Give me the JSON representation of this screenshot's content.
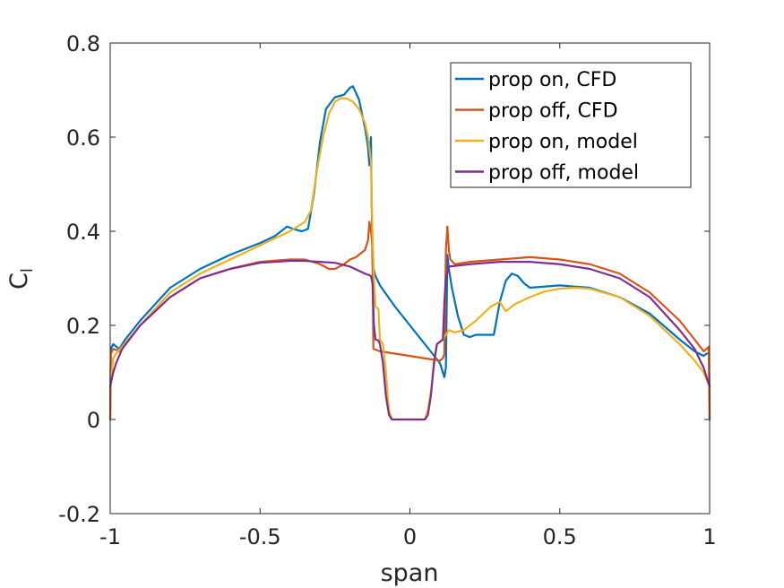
{
  "chart_data": {
    "type": "line",
    "xlabel": "span",
    "ylabel": "C",
    "ylabel_sub": "l",
    "xlim": [
      -1,
      1
    ],
    "ylim": [
      -0.2,
      0.8
    ],
    "xticks": [
      -1,
      -0.5,
      0,
      0.5,
      1
    ],
    "xtick_labels": [
      "-1",
      "-0.5",
      "0",
      "0.5",
      "1"
    ],
    "yticks": [
      -0.2,
      0,
      0.2,
      0.4,
      0.6,
      0.8
    ],
    "ytick_labels": [
      "-0.2",
      "0",
      "0.2",
      "0.4",
      "0.6",
      "0.8"
    ],
    "grid": false,
    "legend": {
      "position": "top-right"
    },
    "series": [
      {
        "name": "prop on, CFD",
        "color": "#0072BD",
        "points": [
          [
            -1,
            0.0
          ],
          [
            -0.998,
            0.15
          ],
          [
            -0.99,
            0.16
          ],
          [
            -0.98,
            0.155
          ],
          [
            -0.97,
            0.15
          ],
          [
            -0.95,
            0.17
          ],
          [
            -0.9,
            0.21
          ],
          [
            -0.8,
            0.28
          ],
          [
            -0.7,
            0.32
          ],
          [
            -0.6,
            0.35
          ],
          [
            -0.5,
            0.375
          ],
          [
            -0.45,
            0.39
          ],
          [
            -0.41,
            0.41
          ],
          [
            -0.39,
            0.405
          ],
          [
            -0.36,
            0.4
          ],
          [
            -0.34,
            0.405
          ],
          [
            -0.32,
            0.48
          ],
          [
            -0.3,
            0.59
          ],
          [
            -0.28,
            0.66
          ],
          [
            -0.25,
            0.685
          ],
          [
            -0.22,
            0.69
          ],
          [
            -0.2,
            0.705
          ],
          [
            -0.19,
            0.708
          ],
          [
            -0.17,
            0.68
          ],
          [
            -0.15,
            0.62
          ],
          [
            -0.14,
            0.58
          ],
          [
            -0.135,
            0.54
          ],
          [
            -0.13,
            0.6
          ],
          [
            -0.128,
            0.48
          ],
          [
            -0.125,
            0.33
          ],
          [
            -0.115,
            0.305
          ],
          [
            -0.1,
            0.285
          ],
          [
            -0.05,
            0.24
          ],
          [
            0,
            0.2
          ],
          [
            0.05,
            0.16
          ],
          [
            0.1,
            0.12
          ],
          [
            0.115,
            0.09
          ],
          [
            0.12,
            0.11
          ],
          [
            0.125,
            0.35
          ],
          [
            0.13,
            0.32
          ],
          [
            0.14,
            0.28
          ],
          [
            0.16,
            0.22
          ],
          [
            0.18,
            0.18
          ],
          [
            0.2,
            0.175
          ],
          [
            0.22,
            0.18
          ],
          [
            0.25,
            0.18
          ],
          [
            0.28,
            0.18
          ],
          [
            0.3,
            0.25
          ],
          [
            0.32,
            0.295
          ],
          [
            0.34,
            0.31
          ],
          [
            0.36,
            0.305
          ],
          [
            0.38,
            0.29
          ],
          [
            0.4,
            0.28
          ],
          [
            0.5,
            0.285
          ],
          [
            0.6,
            0.28
          ],
          [
            0.7,
            0.26
          ],
          [
            0.8,
            0.225
          ],
          [
            0.9,
            0.17
          ],
          [
            0.95,
            0.145
          ],
          [
            0.98,
            0.135
          ],
          [
            0.99,
            0.14
          ],
          [
            0.998,
            0.14
          ],
          [
            1,
            0.0
          ]
        ]
      },
      {
        "name": "prop off, CFD",
        "color": "#D95319",
        "points": [
          [
            -1,
            0.0
          ],
          [
            -0.998,
            0.14
          ],
          [
            -0.99,
            0.15
          ],
          [
            -0.98,
            0.148
          ],
          [
            -0.97,
            0.145
          ],
          [
            -0.95,
            0.16
          ],
          [
            -0.9,
            0.2
          ],
          [
            -0.8,
            0.26
          ],
          [
            -0.7,
            0.3
          ],
          [
            -0.6,
            0.32
          ],
          [
            -0.5,
            0.335
          ],
          [
            -0.4,
            0.34
          ],
          [
            -0.35,
            0.34
          ],
          [
            -0.3,
            0.33
          ],
          [
            -0.27,
            0.32
          ],
          [
            -0.25,
            0.32
          ],
          [
            -0.22,
            0.33
          ],
          [
            -0.2,
            0.34
          ],
          [
            -0.18,
            0.345
          ],
          [
            -0.15,
            0.36
          ],
          [
            -0.14,
            0.38
          ],
          [
            -0.135,
            0.42
          ],
          [
            -0.13,
            0.4
          ],
          [
            -0.125,
            0.37
          ],
          [
            -0.122,
            0.15
          ],
          [
            -0.1,
            0.145
          ],
          [
            -0.05,
            0.14
          ],
          [
            0,
            0.135
          ],
          [
            0.05,
            0.13
          ],
          [
            0.1,
            0.125
          ],
          [
            0.11,
            0.13
          ],
          [
            0.115,
            0.14
          ],
          [
            0.12,
            0.36
          ],
          [
            0.125,
            0.41
          ],
          [
            0.13,
            0.36
          ],
          [
            0.135,
            0.34
          ],
          [
            0.15,
            0.33
          ],
          [
            0.2,
            0.335
          ],
          [
            0.3,
            0.34
          ],
          [
            0.4,
            0.345
          ],
          [
            0.5,
            0.34
          ],
          [
            0.6,
            0.33
          ],
          [
            0.7,
            0.31
          ],
          [
            0.8,
            0.27
          ],
          [
            0.9,
            0.21
          ],
          [
            0.95,
            0.17
          ],
          [
            0.98,
            0.145
          ],
          [
            0.99,
            0.15
          ],
          [
            0.997,
            0.155
          ],
          [
            1,
            0.0
          ]
        ]
      },
      {
        "name": "prop on, model",
        "color": "#EDB120",
        "points": [
          [
            -1,
            0.07
          ],
          [
            -0.99,
            0.13
          ],
          [
            -0.98,
            0.14
          ],
          [
            -0.96,
            0.155
          ],
          [
            -0.9,
            0.2
          ],
          [
            -0.8,
            0.27
          ],
          [
            -0.7,
            0.31
          ],
          [
            -0.6,
            0.34
          ],
          [
            -0.5,
            0.37
          ],
          [
            -0.45,
            0.385
          ],
          [
            -0.4,
            0.4
          ],
          [
            -0.35,
            0.42
          ],
          [
            -0.33,
            0.445
          ],
          [
            -0.31,
            0.53
          ],
          [
            -0.29,
            0.6
          ],
          [
            -0.27,
            0.65
          ],
          [
            -0.25,
            0.675
          ],
          [
            -0.23,
            0.683
          ],
          [
            -0.21,
            0.682
          ],
          [
            -0.19,
            0.675
          ],
          [
            -0.17,
            0.66
          ],
          [
            -0.15,
            0.63
          ],
          [
            -0.14,
            0.6
          ],
          [
            -0.13,
            0.55
          ],
          [
            -0.125,
            0.4
          ],
          [
            -0.12,
            0.3
          ],
          [
            -0.115,
            0.24
          ],
          [
            -0.105,
            0.235
          ],
          [
            -0.1,
            0.17
          ],
          [
            -0.09,
            0.16
          ],
          [
            -0.08,
            0.1
          ],
          [
            -0.07,
            0.02
          ],
          [
            -0.06,
            0.0
          ],
          [
            0.05,
            0.0
          ],
          [
            0.06,
            0.02
          ],
          [
            0.07,
            0.06
          ],
          [
            0.08,
            0.11
          ],
          [
            0.09,
            0.16
          ],
          [
            0.1,
            0.165
          ],
          [
            0.11,
            0.17
          ],
          [
            0.12,
            0.18
          ],
          [
            0.13,
            0.19
          ],
          [
            0.15,
            0.185
          ],
          [
            0.18,
            0.19
          ],
          [
            0.22,
            0.21
          ],
          [
            0.27,
            0.24
          ],
          [
            0.3,
            0.25
          ],
          [
            0.32,
            0.23
          ],
          [
            0.35,
            0.245
          ],
          [
            0.4,
            0.26
          ],
          [
            0.45,
            0.272
          ],
          [
            0.5,
            0.278
          ],
          [
            0.55,
            0.28
          ],
          [
            0.6,
            0.278
          ],
          [
            0.7,
            0.26
          ],
          [
            0.8,
            0.22
          ],
          [
            0.9,
            0.16
          ],
          [
            0.95,
            0.125
          ],
          [
            0.98,
            0.1
          ],
          [
            1,
            0.07
          ]
        ]
      },
      {
        "name": "prop off, model",
        "color": "#7E2F8E",
        "points": [
          [
            -1,
            0.07
          ],
          [
            -0.99,
            0.1
          ],
          [
            -0.98,
            0.12
          ],
          [
            -0.96,
            0.15
          ],
          [
            -0.9,
            0.2
          ],
          [
            -0.8,
            0.26
          ],
          [
            -0.7,
            0.3
          ],
          [
            -0.6,
            0.32
          ],
          [
            -0.5,
            0.333
          ],
          [
            -0.4,
            0.337
          ],
          [
            -0.35,
            0.337
          ],
          [
            -0.3,
            0.335
          ],
          [
            -0.25,
            0.333
          ],
          [
            -0.2,
            0.325
          ],
          [
            -0.15,
            0.31
          ],
          [
            -0.13,
            0.305
          ],
          [
            -0.125,
            0.29
          ],
          [
            -0.12,
            0.2
          ],
          [
            -0.115,
            0.17
          ],
          [
            -0.105,
            0.168
          ],
          [
            -0.1,
            0.16
          ],
          [
            -0.09,
            0.12
          ],
          [
            -0.08,
            0.05
          ],
          [
            -0.07,
            0.01
          ],
          [
            -0.06,
            0.0
          ],
          [
            0.05,
            0.0
          ],
          [
            0.06,
            0.01
          ],
          [
            0.07,
            0.05
          ],
          [
            0.08,
            0.12
          ],
          [
            0.09,
            0.16
          ],
          [
            0.1,
            0.165
          ],
          [
            0.11,
            0.17
          ],
          [
            0.115,
            0.25
          ],
          [
            0.12,
            0.3
          ],
          [
            0.13,
            0.325
          ],
          [
            0.2,
            0.33
          ],
          [
            0.3,
            0.335
          ],
          [
            0.4,
            0.335
          ],
          [
            0.5,
            0.33
          ],
          [
            0.6,
            0.32
          ],
          [
            0.7,
            0.3
          ],
          [
            0.8,
            0.26
          ],
          [
            0.9,
            0.19
          ],
          [
            0.95,
            0.15
          ],
          [
            0.98,
            0.11
          ],
          [
            0.99,
            0.09
          ],
          [
            1,
            0.07
          ]
        ]
      }
    ]
  }
}
